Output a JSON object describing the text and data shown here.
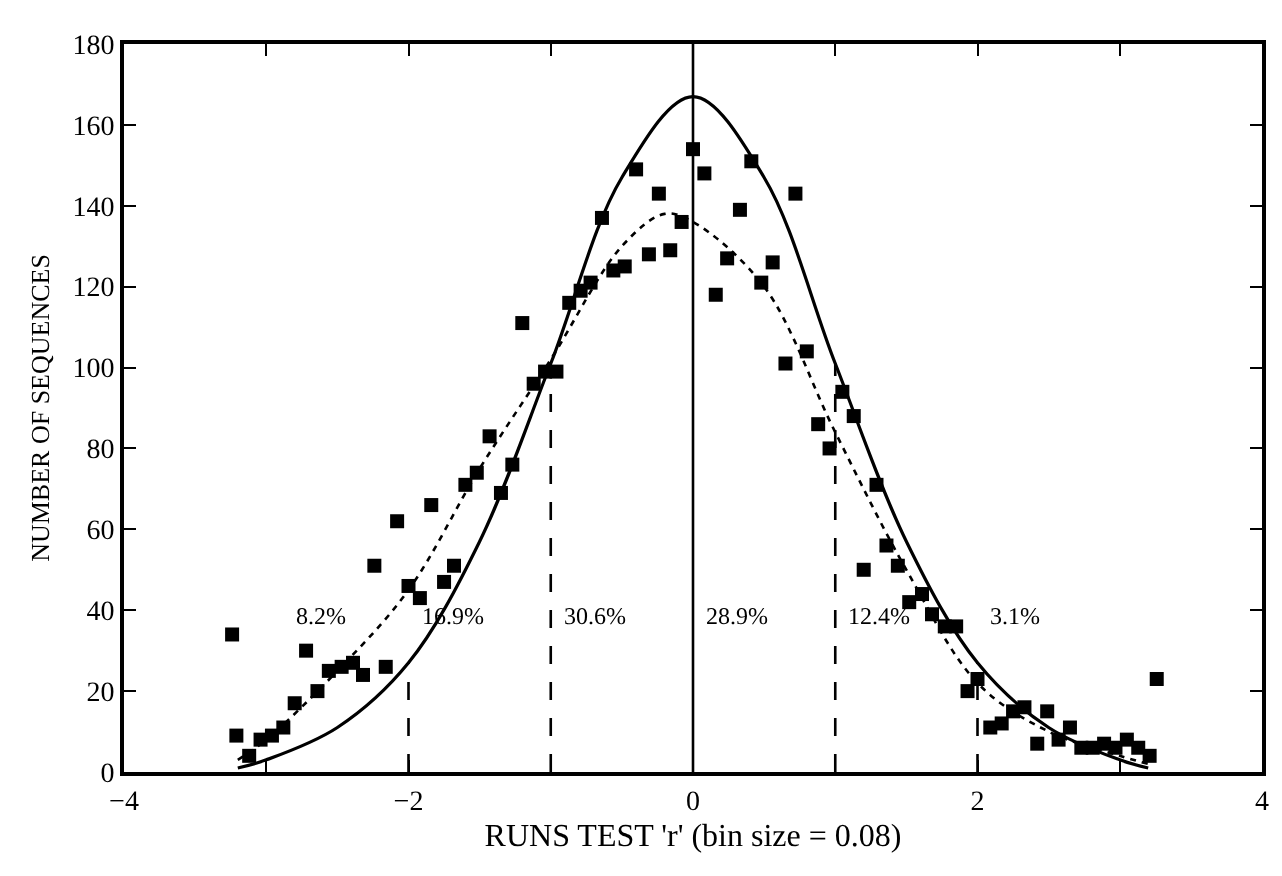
{
  "chart_data": {
    "type": "scatter",
    "xlabel": "RUNS TEST 'r' (bin size = 0.08)",
    "ylabel": "NUMBER OF SEQUENCES",
    "xlim": [
      -4,
      4
    ],
    "ylim": [
      0,
      180
    ],
    "xticks": [
      -4,
      {
        "value": -3,
        "label": null
      },
      -2,
      {
        "value": -1,
        "label": null
      },
      0,
      {
        "value": 1,
        "label": null
      },
      2,
      {
        "value": 3,
        "label": null
      },
      4
    ],
    "yticks": [
      0,
      20,
      40,
      60,
      80,
      100,
      120,
      140,
      160,
      180
    ],
    "marker": "square",
    "series": [
      {
        "color": "#000000",
        "x": [
          -3.24,
          -3.21,
          -3.12,
          -3.04,
          -2.96,
          -2.88,
          -2.8,
          -2.72,
          -2.64,
          -2.56,
          -2.47,
          -2.39,
          -2.32,
          -2.24,
          -2.16,
          -2.08,
          -2.0,
          -1.92,
          -1.84,
          -1.75,
          -1.68,
          -1.6,
          -1.52,
          -1.43,
          -1.35,
          -1.27,
          -1.2,
          -1.12,
          -1.04,
          -0.96,
          -0.87,
          -0.79,
          -0.72,
          -0.64,
          -0.56,
          -0.48,
          -0.4,
          -0.31,
          -0.24,
          -0.16,
          -0.08,
          0.0,
          0.08,
          0.16,
          0.24,
          0.33,
          0.41,
          0.48,
          0.56,
          0.65,
          0.72,
          0.8,
          0.88,
          0.96,
          1.05,
          1.13,
          1.2,
          1.29,
          1.36,
          1.44,
          1.52,
          1.61,
          1.68,
          1.77,
          1.85,
          1.93,
          2.0,
          2.09,
          2.17,
          2.25,
          2.33,
          2.42,
          2.49,
          2.57,
          2.65,
          2.73,
          2.81,
          2.89,
          2.97,
          3.05,
          3.13,
          3.21,
          3.26
        ],
        "values": [
          34,
          9,
          4,
          8,
          9,
          11,
          17,
          30,
          20,
          25,
          26,
          27,
          24,
          51,
          26,
          62,
          46,
          43,
          66,
          47,
          51,
          71,
          74,
          83,
          69,
          76,
          111,
          96,
          99,
          99,
          116,
          119,
          121,
          137,
          124,
          125,
          149,
          128,
          143,
          129,
          136,
          154,
          148,
          118,
          127,
          139,
          151,
          121,
          126,
          101,
          143,
          104,
          86,
          80,
          94,
          88,
          50,
          71,
          56,
          51,
          42,
          44,
          39,
          36,
          36,
          20,
          23,
          11,
          12,
          15,
          16,
          7,
          15,
          8,
          11,
          6,
          6,
          7,
          6,
          8,
          6,
          4,
          23
        ]
      },
      {
        "type": "line",
        "color": "#000000",
        "line_style": "solid",
        "marker": "none",
        "x": [
          -3.2,
          -3,
          -2.5,
          -2,
          -1.5,
          -1,
          -0.5,
          0,
          0.5,
          1,
          1.5,
          2,
          2.5,
          3,
          3.2
        ],
        "values": [
          1,
          3,
          11,
          27,
          57,
          101,
          147,
          167,
          147,
          101,
          57,
          27,
          11,
          3,
          1
        ]
      },
      {
        "type": "line",
        "color": "#000000",
        "line_style": "dotted",
        "marker": "none",
        "x": [
          -3.2,
          -3,
          -2.5,
          -2,
          -1.5,
          -1,
          -0.5,
          -0.2,
          0,
          0.5,
          1,
          1.5,
          2,
          2.5,
          3,
          3.2
        ],
        "values": [
          3,
          8,
          25,
          45,
          75,
          102,
          130,
          138,
          136,
          120,
          84,
          50,
          22,
          10,
          4,
          2
        ]
      },
      {
        "type": "line",
        "color": "#000000",
        "line_style": "dashed",
        "marker": "none",
        "x": [
          -2,
          -2
        ],
        "values": [
          0,
          27
        ]
      },
      {
        "type": "line",
        "color": "#000000",
        "line_style": "dashed",
        "marker": "none",
        "x": [
          -1,
          -1
        ],
        "values": [
          0,
          101
        ]
      },
      {
        "type": "line",
        "color": "#000000",
        "line_style": "dashed",
        "marker": "none",
        "x": [
          1,
          1
        ],
        "values": [
          0,
          101
        ]
      },
      {
        "type": "line",
        "color": "#000000",
        "line_style": "dashed",
        "marker": "none",
        "x": [
          2,
          2
        ],
        "values": [
          0,
          27
        ]
      }
    ],
    "ref_lines": [
      {
        "axis": "x",
        "value": 0,
        "color": "#000000",
        "line_style": "solid"
      }
    ],
    "annotations": [
      "8.2%",
      "16.9%",
      "30.6%",
      "28.9%",
      "12.4%",
      "3.1%"
    ]
  }
}
